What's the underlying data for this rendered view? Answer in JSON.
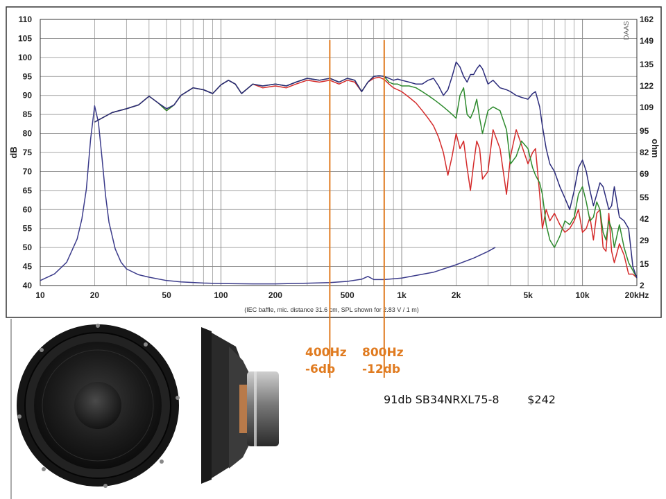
{
  "chart_data": {
    "type": "line",
    "xscale": "log",
    "xlim": [
      10,
      20000
    ],
    "ylim_left": [
      40,
      110
    ],
    "ylim_right": [
      2,
      162
    ],
    "ylabel_left": "dB",
    "ylabel_right": "ohm",
    "x_ticks": [
      {
        "v": 10,
        "label": "10"
      },
      {
        "v": 20,
        "label": "20"
      },
      {
        "v": 50,
        "label": "50"
      },
      {
        "v": 100,
        "label": "100"
      },
      {
        "v": 200,
        "label": "200"
      },
      {
        "v": 500,
        "label": "500"
      },
      {
        "v": 1000,
        "label": "1k"
      },
      {
        "v": 2000,
        "label": "2k"
      },
      {
        "v": 5000,
        "label": "5k"
      },
      {
        "v": 10000,
        "label": "10k"
      },
      {
        "v": 20000,
        "label": "20kHz"
      }
    ],
    "y_ticks_left": [
      "40",
      "45",
      "50",
      "55",
      "60",
      "65",
      "70",
      "75",
      "80",
      "85",
      "90",
      "95",
      "100",
      "105",
      "110"
    ],
    "y_ticks_right": [
      "2",
      "15",
      "29",
      "42",
      "55",
      "69",
      "82",
      "95",
      "109",
      "122",
      "135",
      "149",
      "162"
    ],
    "grid": true,
    "footnote": "(IEC baffle, mic. distance 31.6 cm, SPL shown for 2.83 V / 1 m)",
    "watermark": "DAAS",
    "series": [
      {
        "color": "#2a2a7a",
        "axis": "left",
        "x": [
          20,
          25,
          30,
          35,
          40,
          45,
          50,
          55,
          60,
          70,
          80,
          90,
          100,
          110,
          120,
          130,
          150,
          170,
          200,
          230,
          260,
          300,
          350,
          400,
          450,
          500,
          550,
          600,
          650,
          700,
          750,
          800,
          850,
          900,
          950,
          1000,
          1100,
          1200,
          1300,
          1400,
          1500,
          1600,
          1700,
          1800,
          1900,
          2000,
          2100,
          2200,
          2300,
          2400,
          2500,
          2600,
          2700,
          2800,
          3000,
          3200,
          3500,
          3800,
          4000,
          4300,
          4600,
          5000,
          5300,
          5500,
          5800,
          6000,
          6300,
          6600,
          7000,
          7500,
          8000,
          8500,
          9000,
          9500,
          10000,
          10500,
          11000,
          11500,
          12000,
          12500,
          13000,
          13500,
          14000,
          14500,
          15000,
          16000,
          17000,
          18000,
          19000,
          20000
        ],
        "y": [
          83,
          85.5,
          86.5,
          87.5,
          89.8,
          88,
          86.5,
          87.5,
          90,
          92,
          91.5,
          90.5,
          92.8,
          94,
          93,
          90.5,
          93,
          92.5,
          93,
          92.5,
          93.5,
          94.5,
          94,
          94.5,
          93.5,
          94.5,
          94,
          91,
          93.5,
          95,
          95.2,
          95,
          94.5,
          94,
          94.3,
          94,
          93.5,
          93,
          93,
          94,
          94.5,
          92.5,
          90,
          91.5,
          95,
          98.8,
          97.5,
          95,
          93.5,
          95.5,
          95.5,
          97,
          98,
          97,
          93,
          94,
          92,
          91.5,
          91,
          90,
          89.5,
          89,
          90.5,
          91,
          87,
          82,
          76,
          72,
          70,
          66,
          63,
          60,
          65,
          71,
          73,
          70,
          65,
          61,
          64,
          67,
          66,
          63,
          60,
          61,
          66,
          58,
          57,
          55,
          45,
          42
        ]
      },
      {
        "color": "#2d8a2d",
        "axis": "left",
        "x": [
          20,
          25,
          30,
          35,
          40,
          45,
          50,
          55,
          60,
          70,
          80,
          90,
          100,
          110,
          120,
          130,
          150,
          170,
          200,
          230,
          260,
          300,
          350,
          400,
          450,
          500,
          550,
          600,
          650,
          700,
          750,
          800,
          850,
          900,
          950,
          1000,
          1100,
          1200,
          1300,
          1400,
          1500,
          1600,
          1700,
          1800,
          1900,
          2000,
          2100,
          2200,
          2300,
          2400,
          2500,
          2600,
          2700,
          2800,
          3000,
          3200,
          3500,
          3800,
          4000,
          4300,
          4600,
          5000,
          5300,
          5500,
          5800,
          6000,
          6300,
          6600,
          7000,
          7500,
          8000,
          8500,
          9000,
          9500,
          10000,
          10500,
          11000,
          11500,
          12000,
          12500,
          13000,
          13500,
          14000,
          14500,
          15000,
          16000,
          17000,
          18000,
          19000,
          20000
        ],
        "y": [
          83,
          85.5,
          86.5,
          87.5,
          89.8,
          88,
          86,
          87.5,
          90,
          92,
          91.5,
          90.5,
          92.8,
          94,
          93,
          90.5,
          93,
          92.5,
          93,
          92.5,
          93.5,
          94.5,
          94,
          94.5,
          93.5,
          94.5,
          94,
          91,
          93.5,
          95,
          95.2,
          95,
          93.5,
          93,
          93,
          92.5,
          92.5,
          92,
          91,
          90,
          89,
          88,
          87,
          86,
          85,
          84,
          90,
          92,
          85,
          84,
          86,
          89,
          84,
          80,
          86,
          87,
          86,
          81,
          72,
          74,
          78,
          76,
          71,
          69,
          67,
          64,
          56,
          52,
          50,
          53,
          57,
          56,
          58,
          64,
          66,
          62,
          57,
          58,
          62,
          60,
          54,
          52,
          57,
          55,
          50,
          56,
          50,
          46,
          44,
          42
        ]
      },
      {
        "color": "#d42a2a",
        "axis": "left",
        "x": [
          20,
          25,
          30,
          35,
          40,
          45,
          50,
          55,
          60,
          70,
          80,
          90,
          100,
          110,
          120,
          130,
          150,
          170,
          200,
          230,
          260,
          300,
          350,
          400,
          450,
          500,
          550,
          600,
          650,
          700,
          750,
          800,
          850,
          900,
          950,
          1000,
          1100,
          1200,
          1300,
          1400,
          1500,
          1600,
          1700,
          1800,
          1900,
          2000,
          2100,
          2200,
          2300,
          2400,
          2500,
          2600,
          2700,
          2800,
          3000,
          3200,
          3500,
          3800,
          4000,
          4300,
          4600,
          5000,
          5300,
          5500,
          5800,
          6000,
          6300,
          6600,
          7000,
          7500,
          8000,
          8500,
          9000,
          9500,
          10000,
          10500,
          11000,
          11500,
          12000,
          12500,
          13000,
          13500,
          14000,
          14500,
          15000,
          16000,
          17000,
          18000,
          19000,
          20000
        ],
        "y": [
          83,
          85.5,
          86.5,
          87.5,
          89.8,
          88,
          86,
          87.5,
          90,
          92,
          91.5,
          90.5,
          92.8,
          94,
          93,
          90.5,
          93,
          92,
          92.5,
          92,
          93,
          94,
          93.5,
          94,
          93,
          94,
          93.5,
          91,
          93.5,
          94.5,
          94.8,
          94.2,
          93,
          92,
          91.5,
          91,
          89.5,
          88,
          86,
          84,
          82,
          79,
          75,
          69,
          74,
          80,
          76,
          78,
          71,
          65,
          72,
          78,
          76,
          68,
          70,
          81,
          76,
          64,
          74,
          81,
          77,
          72,
          75,
          76,
          64,
          55,
          60,
          57,
          59,
          56,
          54,
          55,
          57,
          60,
          54,
          55,
          58,
          52,
          59,
          60,
          50,
          49,
          59,
          49,
          46,
          51,
          48,
          43,
          43,
          42
        ]
      },
      {
        "color": "#3a3a8a",
        "axis": "right",
        "x": [
          10,
          12,
          14,
          16,
          17,
          18,
          19,
          20,
          21,
          22,
          23,
          24,
          26,
          28,
          30,
          35,
          40,
          50,
          60,
          80,
          100,
          150,
          200,
          300,
          400,
          500,
          600,
          650,
          700,
          800,
          1000,
          1500,
          2000,
          2500,
          3000,
          3300
        ],
        "y": [
          5,
          9,
          16,
          30,
          42,
          60,
          90,
          110,
          100,
          78,
          56,
          40,
          24,
          16,
          12,
          8.5,
          7,
          5,
          4.2,
          3.5,
          3.2,
          3,
          3,
          3.4,
          3.8,
          4.5,
          5.8,
          7.5,
          5.6,
          5.6,
          6.5,
          10,
          14.5,
          18.5,
          22.5,
          25
        ]
      }
    ],
    "annotations": [
      {
        "x": 400,
        "label": "400Hz",
        "sub": "-6db"
      },
      {
        "x": 800,
        "label": "800Hz",
        "sub": "-12db"
      }
    ]
  },
  "product": {
    "info": "91db SB34NRXL75-8        $242"
  },
  "colors": {
    "annotation": "#e07b20",
    "grid": "#8a8a8a",
    "frame": "#333333"
  }
}
